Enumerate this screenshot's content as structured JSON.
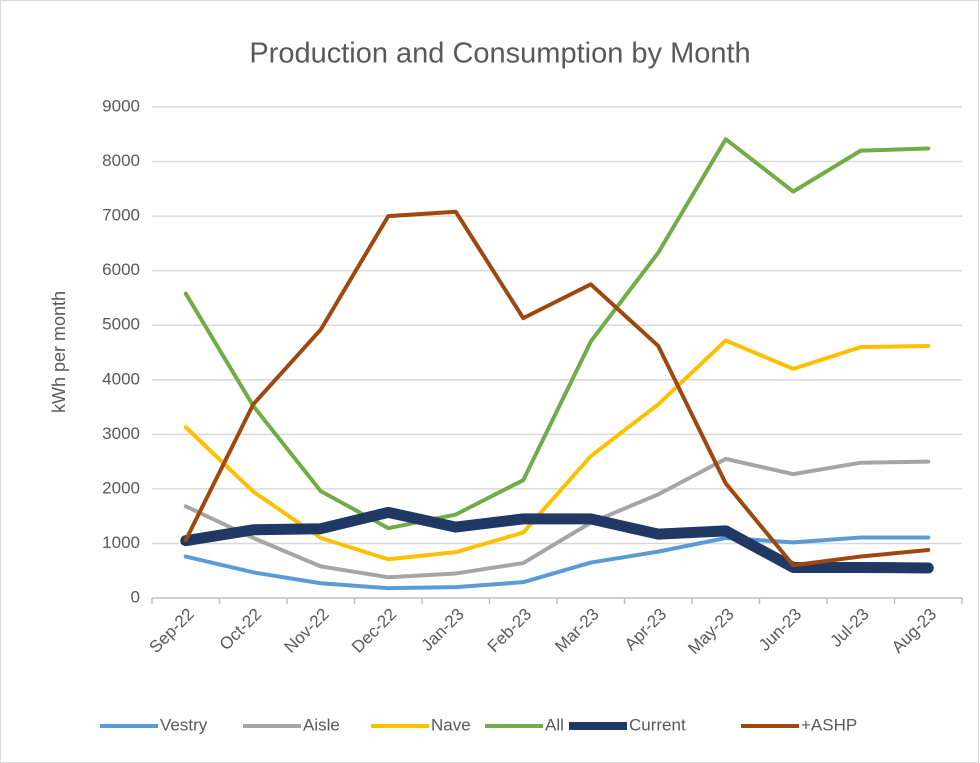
{
  "chart_data": {
    "type": "line",
    "title": "Production and Consumption by Month",
    "y_label": "kWh per month",
    "categories": [
      "Sep-22",
      "Oct-22",
      "Nov-22",
      "Dec-22",
      "Jan-23",
      "Feb-23",
      "Mar-23",
      "Apr-23",
      "May-23",
      "Jun-23",
      "Jul-23",
      "Aug-23"
    ],
    "series": [
      {
        "name": "Vestry",
        "color": "#5b9bd5",
        "values": [
          760,
          470,
          270,
          180,
          200,
          290,
          650,
          850,
          1100,
          1020,
          1110,
          1110
        ]
      },
      {
        "name": "Aisle",
        "color": "#a5a5a5",
        "values": [
          1680,
          1100,
          580,
          380,
          450,
          640,
          1380,
          1900,
          2550,
          2270,
          2480,
          2500
        ]
      },
      {
        "name": "Nave",
        "color": "#ffc000",
        "values": [
          3130,
          1950,
          1100,
          710,
          840,
          1200,
          2600,
          3550,
          4720,
          4200,
          4600,
          4620
        ]
      },
      {
        "name": "All",
        "color": "#70ad47",
        "values": [
          5580,
          3520,
          1960,
          1280,
          1530,
          2160,
          4700,
          6330,
          8410,
          7450,
          8200,
          8240
        ]
      },
      {
        "name": "Current",
        "color": "#203864",
        "values": [
          1050,
          1250,
          1270,
          1570,
          1300,
          1450,
          1450,
          1170,
          1230,
          560,
          560,
          550
        ]
      },
      {
        "name": "+ASHP",
        "color": "#9e480e",
        "values": [
          1060,
          3550,
          4920,
          7000,
          7080,
          5130,
          5750,
          4620,
          2100,
          600,
          760,
          880
        ]
      }
    ],
    "ylim": [
      0,
      9000
    ],
    "yticks": [
      0,
      1000,
      2000,
      3000,
      4000,
      5000,
      6000,
      7000,
      8000,
      9000
    ],
    "grid": true,
    "legend": "bottom"
  }
}
